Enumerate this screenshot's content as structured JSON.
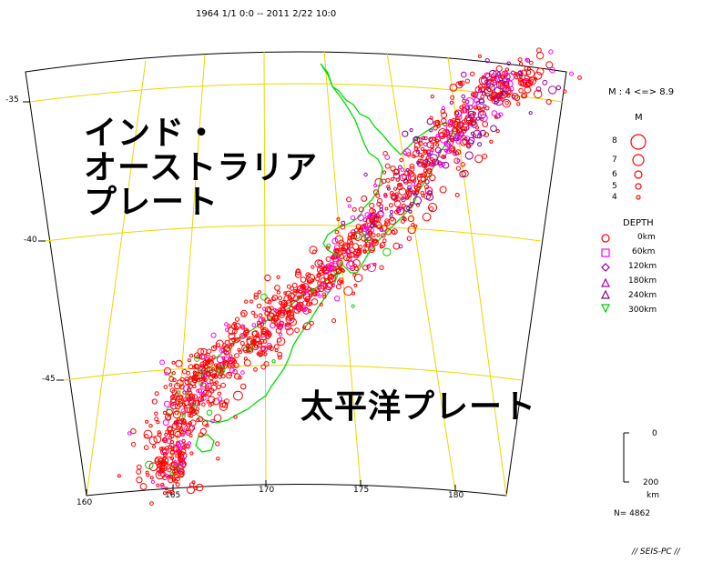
{
  "header": {
    "period": "1964 1/1 0:0 -- 2011 2/22 10:0"
  },
  "map": {
    "lat_labels": [
      "-35",
      "-40",
      "-45"
    ],
    "lon_labels": [
      "160",
      "165",
      "170",
      "175",
      "180"
    ],
    "plate_labels": {
      "indo_australian_line1": "インド・",
      "indo_australian_line2": "オーストラリア",
      "indo_australian_line3": "プレート",
      "pacific": "太平洋プレート"
    }
  },
  "legend": {
    "magnitude_range": "M : 4 <=> 8.9",
    "magnitude_title": "M",
    "magnitudes": [
      "8",
      "7",
      "6",
      "5",
      "4"
    ],
    "depth_title": "DEPTH",
    "depths": [
      "0km",
      "60km",
      "120km",
      "180km",
      "240km",
      "300km"
    ],
    "depth_colors": [
      "#ff0000",
      "#ff00ff",
      "#8800aa",
      "#aa00aa",
      "#880088",
      "#00cc00"
    ],
    "scale_top": "0",
    "scale_bottom": "200",
    "scale_unit": "km",
    "count": "N= 4862"
  },
  "footer": {
    "software": "// SEIS-PC //"
  }
}
